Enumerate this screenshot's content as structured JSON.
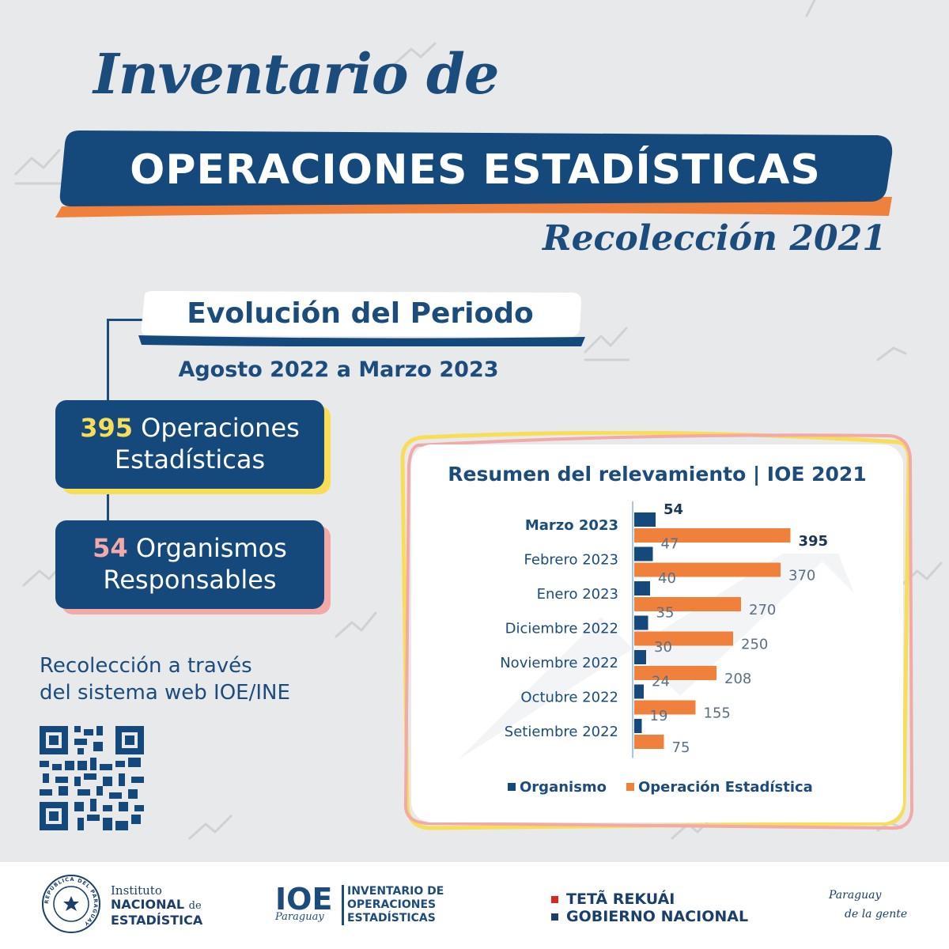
{
  "header": {
    "title_line1": "Inventario de",
    "title_banner": "OPERACIONES ESTADÍSTICAS",
    "subtitle": "Recolección 2021"
  },
  "period": {
    "title": "Evolución del Periodo",
    "range": "Agosto 2022 a Marzo 2023"
  },
  "stats": {
    "operaciones_number": "395",
    "operaciones_label1": "Operaciones",
    "operaciones_label2": "Estadísticas",
    "organismos_number": "54",
    "organismos_label1": "Organismos",
    "organismos_label2": "Responsables"
  },
  "web": {
    "line1": "Recolección a través",
    "line2": "del sistema web IOE/INE"
  },
  "colors": {
    "navy": "#15497c",
    "orange": "#f0813d",
    "yellow": "#f8dd56",
    "pink": "#f2a9a8",
    "background": "#e8e9ea"
  },
  "chart_data": {
    "type": "bar",
    "orientation": "horizontal",
    "title": "Resumen del relevamiento | IOE 2021",
    "categories": [
      "Marzo 2023",
      "Febrero 2023",
      "Enero 2023",
      "Diciembre 2022",
      "Noviembre 2022",
      "Octubre 2022",
      "Setiembre 2022"
    ],
    "highlight_category": "Marzo 2023",
    "series": [
      {
        "name": "Organismo",
        "color": "#15497c",
        "values": [
          54,
          47,
          40,
          35,
          30,
          24,
          19
        ]
      },
      {
        "name": "Operación Estadística",
        "color": "#f0813d",
        "values": [
          395,
          370,
          270,
          250,
          208,
          155,
          75
        ]
      }
    ],
    "legend_position": "bottom",
    "grid": false
  },
  "footer": {
    "ine_line1": "Instituto",
    "ine_line2a": "NACIONAL",
    "ine_line2b": "de",
    "ine_line3": "ESTADÍSTICA",
    "seal_text": "REPÚBLICA DEL PARAGUAY",
    "ioe_abbr": "IOE",
    "ioe_country": "Paraguay",
    "ioe_desc1": "INVENTARIO DE",
    "ioe_desc2": "OPERACIONES",
    "ioe_desc3": "ESTADÍSTICAS",
    "gov_line1": "TETÃ REKUÁI",
    "gov_line2": "GOBIERNO NACIONAL",
    "slogan1": "Paraguay",
    "slogan2": "de la gente"
  }
}
